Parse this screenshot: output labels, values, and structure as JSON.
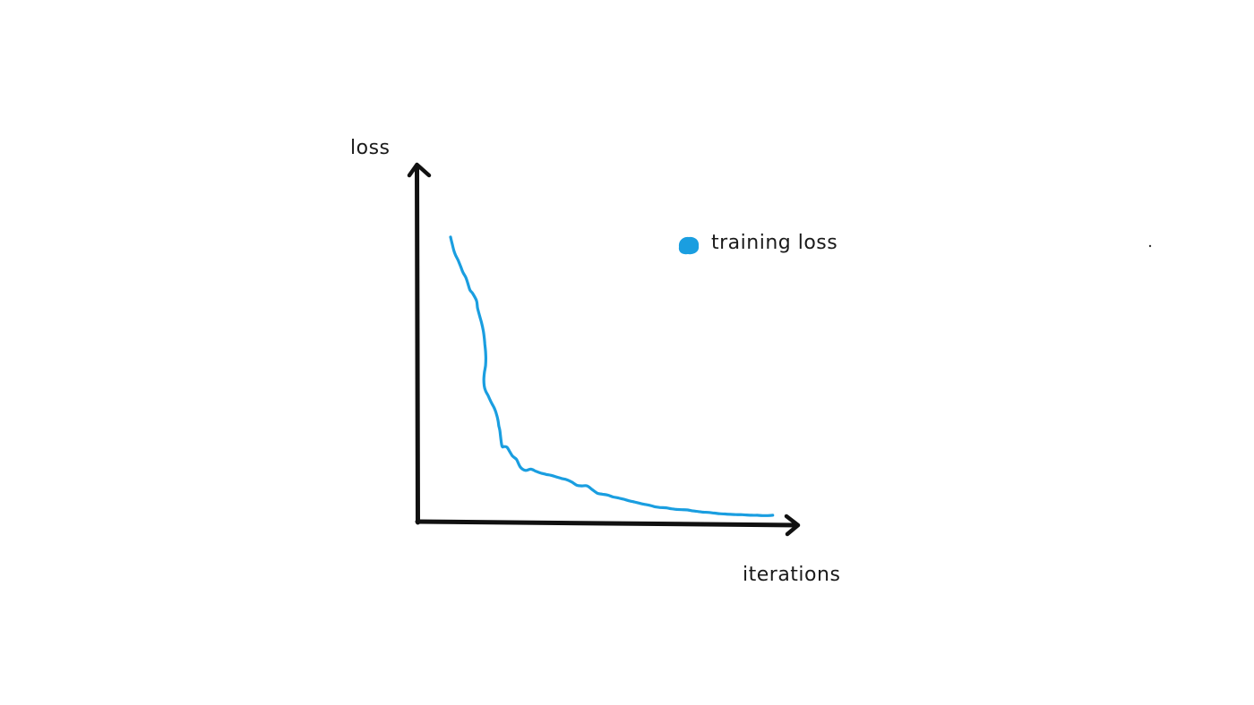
{
  "chart_data": {
    "type": "line",
    "title": "",
    "xlabel": "iterations",
    "ylabel": "loss",
    "xlim": [
      0,
      100
    ],
    "ylim": [
      0,
      100
    ],
    "grid": false,
    "legend_position": "top-right",
    "x": [
      0,
      0.5,
      1.0,
      1.5,
      2.3,
      3.1,
      3.7,
      4.6,
      5.2,
      5.8,
      6.6,
      7.8,
      8.1,
      8.7,
      9.3,
      9.8,
      10.1,
      10.3,
      10.5,
      10.6,
      10.5,
      10.2,
      10.0,
      10.1,
      10.5,
      11.2,
      11.8,
      12.4,
      13.1,
      13.6,
      14.0,
      14.3,
      14.5,
      14.8,
      15.4,
      16.1,
      16.9,
      17.8,
      18.6,
      19.8,
      21.0,
      22.5,
      24.1,
      25.6,
      27.2,
      28.7,
      30.2,
      31.7,
      33.3,
      34.8,
      36.3,
      37.9,
      39.4,
      41.0,
      42.5,
      44.1,
      45.6,
      47.2,
      48.8,
      50.3,
      51.9,
      53.5,
      55.1,
      56.7,
      58.3,
      59.9,
      61.5,
      63.1,
      64.7,
      66.3,
      67.9,
      69.5,
      71.2,
      72.8,
      74.4,
      76.0,
      77.6,
      79.2,
      80.8,
      82.4,
      84.0,
      85.6,
      87.2,
      88.8,
      90.4,
      92.0,
      93.6,
      95.2,
      96.7
    ],
    "series": [
      {
        "name": "training loss",
        "color": "#1a9ee0",
        "values": [
          90.5,
          88.2,
          86.1,
          84.6,
          82.9,
          80.8,
          79.1,
          77.4,
          75.5,
          73.4,
          72.3,
          69.9,
          67.6,
          65.1,
          62.8,
          60.3,
          58.0,
          55.8,
          53.5,
          51.3,
          49.0,
          46.9,
          44.8,
          42.4,
          40.8,
          39.4,
          38.0,
          36.7,
          35.3,
          33.9,
          32.4,
          30.9,
          29.4,
          27.9,
          23.1,
          22.8,
          22.6,
          21.1,
          19.7,
          18.6,
          16.1,
          15.1,
          15.5,
          14.8,
          14.2,
          13.8,
          13.5,
          13.0,
          12.5,
          12.1,
          11.4,
          10.3,
          10.1,
          10.1,
          8.9,
          7.7,
          7.4,
          7.1,
          6.5,
          6.2,
          5.8,
          5.3,
          4.9,
          4.5,
          4.1,
          3.8,
          3.3,
          3.1,
          3.0,
          2.7,
          2.5,
          2.4,
          2.3,
          2.0,
          1.8,
          1.6,
          1.5,
          1.3,
          1.1,
          1.0,
          0.9,
          0.8,
          0.8,
          0.7,
          0.6,
          0.6,
          0.5,
          0.5,
          0.6
        ]
      }
    ]
  },
  "colors": {
    "axis": "#111111",
    "series": "#1a9ee0",
    "text": "#1a1a1a",
    "background": "#ffffff"
  }
}
